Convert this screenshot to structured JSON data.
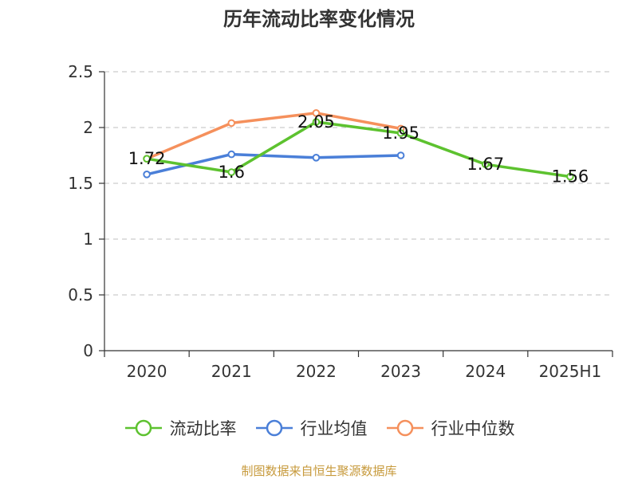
{
  "title": "历年流动比率变化情况",
  "source_note": "制图数据来自恒生聚源数据库",
  "colors": {
    "series": [
      "#5dc22f",
      "#4a7fd8",
      "#f5905c"
    ],
    "axis": "#333333",
    "grid": "#cccccc",
    "source": "#c79a3c"
  },
  "legend": {
    "placement": "bottom-center",
    "items": [
      "流动比率",
      "行业均值",
      "行业中位数"
    ]
  },
  "chart_data": {
    "type": "line",
    "title": "历年流动比率变化情况",
    "xlabel": "",
    "ylabel": "",
    "categories": [
      "2020",
      "2021",
      "2022",
      "2023",
      "2024",
      "2025H1"
    ],
    "ylim": [
      0,
      2.5
    ],
    "yticks": [
      0,
      0.5,
      1,
      1.5,
      2,
      2.5
    ],
    "ytick_labels": [
      "0",
      "0.5",
      "1",
      "1.5",
      "2",
      "2.5"
    ],
    "grid": true,
    "series": [
      {
        "name": "流动比率",
        "values": [
          1.72,
          1.6,
          2.05,
          1.95,
          1.67,
          1.56
        ],
        "labels": [
          "1.72",
          "1.6",
          "2.05",
          "1.95",
          "1.67",
          "1.56"
        ],
        "show_labels": true
      },
      {
        "name": "行业均值",
        "values": [
          1.58,
          1.76,
          1.73,
          1.75,
          null,
          null
        ],
        "show_labels": false
      },
      {
        "name": "行业中位数",
        "values": [
          1.72,
          2.04,
          2.13,
          1.99,
          null,
          null
        ],
        "show_labels": false
      }
    ]
  }
}
